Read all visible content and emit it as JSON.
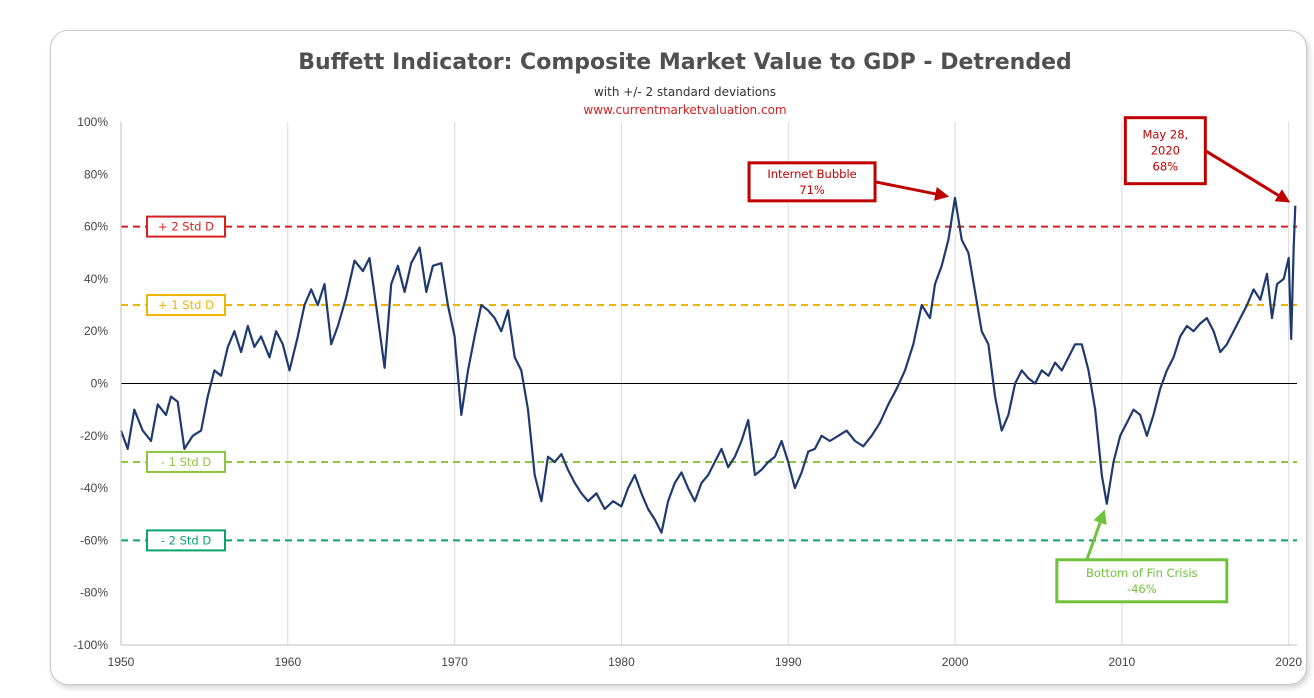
{
  "chart_data": {
    "type": "line",
    "title": "Buffett Indicator: Composite Market Value to GDP - Detrended",
    "subtitle": "with +/- 2 standard deviations",
    "source": "www.currentmarketvaluation.com",
    "xlabel": "",
    "ylabel": "",
    "xlim": [
      1950,
      2020.5
    ],
    "ylim": [
      -100,
      100
    ],
    "x_ticks": [
      "1950",
      "1960",
      "1970",
      "1980",
      "1990",
      "2000",
      "2010",
      "2020"
    ],
    "y_ticks": [
      "100%",
      "80%",
      "60%",
      "40%",
      "20%",
      "0%",
      "-20%",
      "-40%",
      "-60%",
      "-80%",
      "-100%"
    ],
    "grid": "vertical",
    "line_color": "#1f3a6e",
    "series": [
      {
        "values": [
          [
            1950.0,
            -18
          ],
          [
            1950.4,
            -25
          ],
          [
            1950.8,
            -10
          ],
          [
            1951.3,
            -18
          ],
          [
            1951.8,
            -22
          ],
          [
            1952.2,
            -8
          ],
          [
            1952.7,
            -12
          ],
          [
            1953.0,
            -5
          ],
          [
            1953.4,
            -7
          ],
          [
            1953.8,
            -25
          ],
          [
            1954.3,
            -20
          ],
          [
            1954.8,
            -18
          ],
          [
            1955.2,
            -5
          ],
          [
            1955.6,
            5
          ],
          [
            1956.0,
            3
          ],
          [
            1956.4,
            14
          ],
          [
            1956.8,
            20
          ],
          [
            1957.2,
            12
          ],
          [
            1957.6,
            22
          ],
          [
            1958.0,
            14
          ],
          [
            1958.4,
            18
          ],
          [
            1958.9,
            10
          ],
          [
            1959.3,
            20
          ],
          [
            1959.7,
            15
          ],
          [
            1960.1,
            5
          ],
          [
            1960.6,
            18
          ],
          [
            1961.0,
            30
          ],
          [
            1961.4,
            36
          ],
          [
            1961.8,
            30
          ],
          [
            1962.2,
            38
          ],
          [
            1962.6,
            15
          ],
          [
            1963.0,
            22
          ],
          [
            1963.5,
            33
          ],
          [
            1964.0,
            47
          ],
          [
            1964.5,
            43
          ],
          [
            1964.9,
            48
          ],
          [
            1965.4,
            25
          ],
          [
            1965.8,
            6
          ],
          [
            1966.2,
            38
          ],
          [
            1966.6,
            45
          ],
          [
            1967.0,
            35
          ],
          [
            1967.4,
            46
          ],
          [
            1967.9,
            52
          ],
          [
            1968.3,
            35
          ],
          [
            1968.7,
            45
          ],
          [
            1969.2,
            46
          ],
          [
            1969.6,
            30
          ],
          [
            1970.0,
            18
          ],
          [
            1970.4,
            -12
          ],
          [
            1970.8,
            5
          ],
          [
            1971.2,
            18
          ],
          [
            1971.6,
            30
          ],
          [
            1972.0,
            28
          ],
          [
            1972.4,
            25
          ],
          [
            1972.8,
            20
          ],
          [
            1973.2,
            28
          ],
          [
            1973.6,
            10
          ],
          [
            1974.0,
            5
          ],
          [
            1974.4,
            -10
          ],
          [
            1974.8,
            -35
          ],
          [
            1975.2,
            -45
          ],
          [
            1975.6,
            -28
          ],
          [
            1976.0,
            -30
          ],
          [
            1976.4,
            -27
          ],
          [
            1976.8,
            -33
          ],
          [
            1977.2,
            -38
          ],
          [
            1977.6,
            -42
          ],
          [
            1978.0,
            -45
          ],
          [
            1978.5,
            -42
          ],
          [
            1979.0,
            -48
          ],
          [
            1979.5,
            -45
          ],
          [
            1980.0,
            -47
          ],
          [
            1980.4,
            -40
          ],
          [
            1980.8,
            -35
          ],
          [
            1981.2,
            -42
          ],
          [
            1981.6,
            -48
          ],
          [
            1982.0,
            -52
          ],
          [
            1982.4,
            -57
          ],
          [
            1982.8,
            -45
          ],
          [
            1983.2,
            -38
          ],
          [
            1983.6,
            -34
          ],
          [
            1984.0,
            -40
          ],
          [
            1984.4,
            -45
          ],
          [
            1984.8,
            -38
          ],
          [
            1985.2,
            -35
          ],
          [
            1985.6,
            -30
          ],
          [
            1986.0,
            -25
          ],
          [
            1986.4,
            -32
          ],
          [
            1986.8,
            -28
          ],
          [
            1987.2,
            -22
          ],
          [
            1987.6,
            -14
          ],
          [
            1988.0,
            -35
          ],
          [
            1988.4,
            -33
          ],
          [
            1988.8,
            -30
          ],
          [
            1989.2,
            -28
          ],
          [
            1989.6,
            -22
          ],
          [
            1990.0,
            -30
          ],
          [
            1990.4,
            -40
          ],
          [
            1990.8,
            -34
          ],
          [
            1991.2,
            -26
          ],
          [
            1991.6,
            -25
          ],
          [
            1992.0,
            -20
          ],
          [
            1992.5,
            -22
          ],
          [
            1993.0,
            -20
          ],
          [
            1993.5,
            -18
          ],
          [
            1994.0,
            -22
          ],
          [
            1994.5,
            -24
          ],
          [
            1995.0,
            -20
          ],
          [
            1995.5,
            -15
          ],
          [
            1996.0,
            -8
          ],
          [
            1996.5,
            -2
          ],
          [
            1997.0,
            5
          ],
          [
            1997.5,
            15
          ],
          [
            1998.0,
            30
          ],
          [
            1998.5,
            25
          ],
          [
            1998.8,
            38
          ],
          [
            1999.2,
            45
          ],
          [
            1999.6,
            55
          ],
          [
            2000.0,
            71
          ],
          [
            2000.4,
            55
          ],
          [
            2000.8,
            50
          ],
          [
            2001.2,
            35
          ],
          [
            2001.6,
            20
          ],
          [
            2002.0,
            15
          ],
          [
            2002.4,
            -5
          ],
          [
            2002.8,
            -18
          ],
          [
            2003.2,
            -12
          ],
          [
            2003.6,
            0
          ],
          [
            2004.0,
            5
          ],
          [
            2004.4,
            2
          ],
          [
            2004.8,
            0
          ],
          [
            2005.2,
            5
          ],
          [
            2005.6,
            3
          ],
          [
            2006.0,
            8
          ],
          [
            2006.4,
            5
          ],
          [
            2006.8,
            10
          ],
          [
            2007.2,
            15
          ],
          [
            2007.6,
            15
          ],
          [
            2008.0,
            5
          ],
          [
            2008.4,
            -10
          ],
          [
            2008.8,
            -35
          ],
          [
            2009.1,
            -46
          ],
          [
            2009.5,
            -30
          ],
          [
            2009.9,
            -20
          ],
          [
            2010.3,
            -15
          ],
          [
            2010.7,
            -10
          ],
          [
            2011.1,
            -12
          ],
          [
            2011.5,
            -20
          ],
          [
            2011.9,
            -12
          ],
          [
            2012.3,
            -2
          ],
          [
            2012.7,
            5
          ],
          [
            2013.1,
            10
          ],
          [
            2013.5,
            18
          ],
          [
            2013.9,
            22
          ],
          [
            2014.3,
            20
          ],
          [
            2014.7,
            23
          ],
          [
            2015.1,
            25
          ],
          [
            2015.5,
            20
          ],
          [
            2015.9,
            12
          ],
          [
            2016.3,
            15
          ],
          [
            2016.7,
            20
          ],
          [
            2017.1,
            25
          ],
          [
            2017.5,
            30
          ],
          [
            2017.9,
            36
          ],
          [
            2018.3,
            32
          ],
          [
            2018.7,
            42
          ],
          [
            2019.0,
            25
          ],
          [
            2019.3,
            38
          ],
          [
            2019.7,
            40
          ],
          [
            2020.0,
            48
          ],
          [
            2020.15,
            17
          ],
          [
            2020.3,
            52
          ],
          [
            2020.4,
            68
          ]
        ]
      }
    ],
    "reference_lines": [
      {
        "value": 60,
        "label": "+ 2 Std D",
        "color": "#d42020"
      },
      {
        "value": 30,
        "label": "+ 1 Std D",
        "color": "#f0b400"
      },
      {
        "value": 0,
        "label": "",
        "color": "#000000"
      },
      {
        "value": -30,
        "label": "- 1 Std D",
        "color": "#8cc63f"
      },
      {
        "value": -60,
        "label": "- 2 Std D",
        "color": "#0aa36a"
      }
    ],
    "annotations": [
      {
        "text": [
          "Internet Bubble",
          "71%"
        ],
        "color": "#c00000",
        "x": 2000.0,
        "y": 71
      },
      {
        "text": [
          "May 28,",
          "2020",
          "68%"
        ],
        "color": "#c00000",
        "x": 2020.4,
        "y": 68
      },
      {
        "text": [
          "Bottom  of Fin Crisis",
          "-46%"
        ],
        "color": "#70c23a",
        "x": 2009.1,
        "y": -46
      }
    ]
  }
}
